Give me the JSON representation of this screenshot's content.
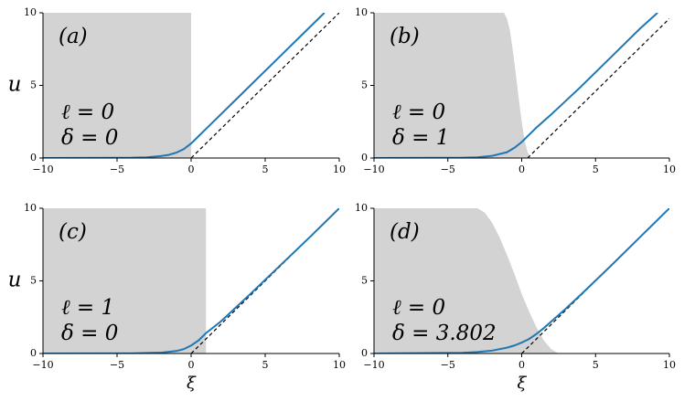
{
  "chart_data": [
    {
      "type": "line",
      "panel_label": "(a)",
      "annotations": [
        "ℓ = 0",
        "δ = 0"
      ],
      "ylabel": "u",
      "xlim": [
        -10,
        10
      ],
      "ylim": [
        0,
        10
      ],
      "xticks": [
        {
          "value": -10,
          "label": "−10"
        },
        {
          "value": -5,
          "label": "−5"
        },
        0,
        5,
        10
      ],
      "yticks": [
        0,
        5,
        10
      ],
      "series": [
        {
          "style": "area",
          "color": "#d3d3d3",
          "x": [
            -10,
            0,
            0
          ],
          "values": [
            10,
            10,
            0
          ]
        },
        {
          "style": "dashed",
          "color": "#000000",
          "x": [
            0,
            10
          ],
          "values": [
            0,
            10
          ]
        },
        {
          "style": "solid",
          "color": "#1f77b4",
          "x": [
            -10,
            -4,
            -3,
            -2,
            -1.5,
            -1,
            -0.5,
            0,
            0.5,
            1,
            2,
            4,
            6,
            8,
            9
          ],
          "values": [
            0,
            0.02,
            0.05,
            0.14,
            0.22,
            0.37,
            0.61,
            1.0,
            1.5,
            2,
            3,
            5,
            7,
            9,
            10
          ]
        }
      ]
    },
    {
      "type": "line",
      "panel_label": "(b)",
      "annotations": [
        "ℓ = 0",
        "δ = 1"
      ],
      "xlim": [
        -10,
        10
      ],
      "ylim": [
        0,
        10
      ],
      "xticks": [
        {
          "value": -10,
          "label": "−10"
        },
        {
          "value": -5,
          "label": "−5"
        },
        0,
        5,
        10
      ],
      "yticks": [
        0,
        5,
        10
      ],
      "series": [
        {
          "style": "area",
          "color": "#d3d3d3",
          "x": [
            -10,
            -1.2,
            -1,
            -0.8,
            -0.6,
            -0.4,
            -0.2,
            0,
            0.2,
            0.4,
            0.6
          ],
          "values": [
            10,
            10,
            9.6,
            8.8,
            7.4,
            5.8,
            4.1,
            2.5,
            1.2,
            0.4,
            0
          ]
        },
        {
          "style": "dashed",
          "color": "#000000",
          "x": [
            0.4,
            10
          ],
          "values": [
            0,
            9.6
          ]
        },
        {
          "style": "solid",
          "color": "#1f77b4",
          "x": [
            -10,
            -4,
            -3,
            -2,
            -1,
            -0.5,
            0,
            0.5,
            1,
            2,
            4,
            6,
            8,
            9.2
          ],
          "values": [
            0,
            0.02,
            0.05,
            0.15,
            0.4,
            0.7,
            1.1,
            1.6,
            2.1,
            3,
            4.9,
            6.9,
            8.9,
            10
          ]
        }
      ]
    },
    {
      "type": "line",
      "panel_label": "(c)",
      "annotations": [
        "ℓ = 1",
        "δ = 0"
      ],
      "ylabel": "u",
      "xlabel": "ξ",
      "xlim": [
        -10,
        10
      ],
      "ylim": [
        0,
        10
      ],
      "xticks": [
        {
          "value": -10,
          "label": "−10"
        },
        {
          "value": -5,
          "label": "−5"
        },
        0,
        5,
        10
      ],
      "yticks": [
        0,
        5,
        10
      ],
      "series": [
        {
          "style": "area",
          "color": "#d3d3d3",
          "x": [
            -10,
            1,
            1
          ],
          "values": [
            10,
            10,
            0
          ]
        },
        {
          "style": "dashed",
          "color": "#000000",
          "x": [
            0,
            10
          ],
          "values": [
            0,
            10
          ]
        },
        {
          "style": "solid",
          "color": "#1f77b4",
          "x": [
            -10,
            -4,
            -2,
            -1,
            -0.5,
            0,
            0.5,
            1,
            2,
            4,
            6,
            8,
            10
          ],
          "values": [
            0,
            0.01,
            0.06,
            0.17,
            0.3,
            0.55,
            0.9,
            1.4,
            2.2,
            4.1,
            6.05,
            8,
            10
          ]
        }
      ]
    },
    {
      "type": "line",
      "panel_label": "(d)",
      "annotations": [
        "ℓ = 0",
        "δ = 3.802"
      ],
      "xlabel": "ξ",
      "xlim": [
        -10,
        10
      ],
      "ylim": [
        0,
        10
      ],
      "xticks": [
        {
          "value": -10,
          "label": "−10"
        },
        {
          "value": -5,
          "label": "−5"
        },
        0,
        5,
        10
      ],
      "yticks": [
        0,
        5,
        10
      ],
      "series": [
        {
          "style": "area",
          "color": "#d3d3d3",
          "x": [
            -10,
            -3,
            -2.5,
            -2,
            -1.5,
            -1,
            -0.5,
            0,
            0.5,
            1,
            1.5,
            2,
            2.5
          ],
          "values": [
            10,
            10,
            9.7,
            9,
            8,
            6.8,
            5.5,
            4.1,
            2.9,
            1.8,
            0.9,
            0.3,
            0
          ]
        },
        {
          "style": "dashed",
          "color": "#000000",
          "x": [
            0,
            10
          ],
          "values": [
            0,
            10
          ]
        },
        {
          "style": "solid",
          "color": "#1f77b4",
          "x": [
            -10,
            -4,
            -3,
            -2,
            -1,
            -0.5,
            0,
            0.5,
            1,
            1.5,
            2,
            3,
            4,
            6,
            8,
            10
          ],
          "values": [
            0,
            0.05,
            0.1,
            0.2,
            0.4,
            0.55,
            0.75,
            1.0,
            1.35,
            1.75,
            2.2,
            3.1,
            4.05,
            6,
            8,
            10
          ]
        }
      ]
    }
  ]
}
